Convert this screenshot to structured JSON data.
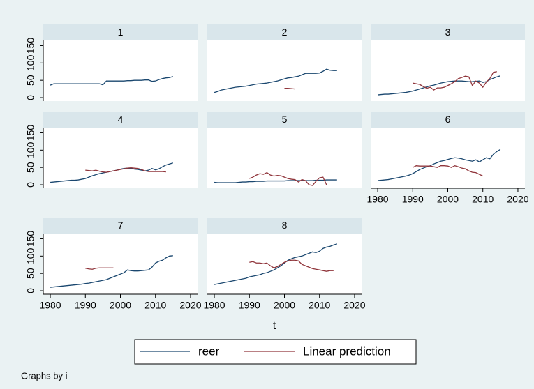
{
  "chart_data": [
    {
      "type": "line",
      "title": "1",
      "x": [
        1980,
        1981,
        1982,
        1983,
        1984,
        1985,
        1986,
        1987,
        1988,
        1989,
        1990,
        1991,
        1992,
        1993,
        1994,
        1995,
        1996,
        1997,
        1998,
        1999,
        2000,
        2001,
        2002,
        2003,
        2004,
        2005,
        2006,
        2007,
        2008,
        2009,
        2010,
        2011,
        2012,
        2013,
        2014,
        2015
      ],
      "xlim": [
        1978,
        2022
      ],
      "ylim": [
        -10,
        165
      ],
      "yticks": [
        0,
        50,
        100,
        150
      ],
      "series": [
        {
          "name": "reer",
          "color": "#1a476f",
          "values": [
            36,
            40,
            40,
            40,
            40,
            40,
            40,
            40,
            40,
            40,
            40,
            40,
            40,
            40,
            40,
            37,
            48,
            48,
            48,
            48,
            48,
            48,
            49,
            49,
            50,
            50,
            50,
            51,
            51,
            47,
            48,
            52,
            55,
            57,
            58,
            61
          ]
        },
        {
          "name": "Linear prediction",
          "color": "#90353b",
          "values": [
            null,
            null,
            null,
            null,
            null,
            null,
            null,
            null,
            null,
            null,
            null,
            null,
            null,
            null,
            null,
            null,
            null,
            null,
            null,
            null,
            null,
            null,
            null,
            null,
            null,
            null,
            null,
            null,
            null,
            null,
            null,
            null,
            null,
            null,
            null,
            null
          ]
        }
      ]
    },
    {
      "type": "line",
      "title": "2",
      "x": [
        1980,
        1981,
        1982,
        1983,
        1984,
        1985,
        1986,
        1987,
        1988,
        1989,
        1990,
        1991,
        1992,
        1993,
        1994,
        1995,
        1996,
        1997,
        1998,
        1999,
        2000,
        2001,
        2002,
        2003,
        2004,
        2005,
        2006,
        2007,
        2008,
        2009,
        2010,
        2011,
        2012,
        2013,
        2014,
        2015
      ],
      "xlim": [
        1978,
        2022
      ],
      "ylim": [
        -10,
        165
      ],
      "series": [
        {
          "name": "reer",
          "color": "#1a476f",
          "values": [
            15,
            18,
            22,
            24,
            26,
            28,
            30,
            31,
            32,
            33,
            35,
            37,
            39,
            40,
            41,
            42,
            44,
            46,
            48,
            51,
            54,
            57,
            58,
            60,
            62,
            66,
            70,
            70,
            70,
            70,
            71,
            76,
            82,
            79,
            78,
            78
          ]
        },
        {
          "name": "Linear prediction",
          "color": "#90353b",
          "values": [
            null,
            null,
            null,
            null,
            null,
            null,
            null,
            null,
            null,
            null,
            null,
            null,
            null,
            null,
            null,
            null,
            null,
            null,
            null,
            null,
            27,
            27,
            26,
            25,
            null,
            null,
            null,
            null,
            null,
            null,
            null,
            null,
            null,
            null,
            null,
            null
          ]
        }
      ]
    },
    {
      "type": "line",
      "title": "3",
      "x": [
        1980,
        1981,
        1982,
        1983,
        1984,
        1985,
        1986,
        1987,
        1988,
        1989,
        1990,
        1991,
        1992,
        1993,
        1994,
        1995,
        1996,
        1997,
        1998,
        1999,
        2000,
        2001,
        2002,
        2003,
        2004,
        2005,
        2006,
        2007,
        2008,
        2009,
        2010,
        2011,
        2012,
        2013,
        2014,
        2015
      ],
      "xlim": [
        1978,
        2022
      ],
      "ylim": [
        -10,
        165
      ],
      "series": [
        {
          "name": "reer",
          "color": "#1a476f",
          "values": [
            8,
            9,
            10,
            10,
            11,
            12,
            13,
            14,
            15,
            17,
            19,
            22,
            25,
            28,
            31,
            34,
            36,
            39,
            42,
            44,
            46,
            47,
            48,
            48,
            48,
            47,
            46,
            46,
            47,
            48,
            44,
            46,
            52,
            56,
            60,
            63
          ]
        },
        {
          "name": "Linear prediction",
          "color": "#90353b",
          "values": [
            null,
            null,
            null,
            null,
            null,
            null,
            null,
            null,
            null,
            null,
            42,
            40,
            38,
            32,
            27,
            30,
            22,
            28,
            28,
            30,
            35,
            40,
            46,
            55,
            58,
            62,
            60,
            35,
            48,
            42,
            30,
            45,
            55,
            73,
            75,
            null
          ]
        }
      ]
    },
    {
      "type": "line",
      "title": "4",
      "x": [
        1980,
        1981,
        1982,
        1983,
        1984,
        1985,
        1986,
        1987,
        1988,
        1989,
        1990,
        1991,
        1992,
        1993,
        1994,
        1995,
        1996,
        1997,
        1998,
        1999,
        2000,
        2001,
        2002,
        2003,
        2004,
        2005,
        2006,
        2007,
        2008,
        2009,
        2010,
        2011,
        2012,
        2013,
        2014,
        2015
      ],
      "xlim": [
        1978,
        2022
      ],
      "ylim": [
        -10,
        165
      ],
      "yticks": [
        0,
        50,
        100,
        150
      ],
      "series": [
        {
          "name": "reer",
          "color": "#1a476f",
          "values": [
            7,
            8,
            9,
            10,
            11,
            12,
            13,
            13,
            14,
            16,
            18,
            22,
            26,
            29,
            32,
            34,
            36,
            38,
            40,
            42,
            45,
            47,
            48,
            47,
            45,
            44,
            42,
            40,
            42,
            47,
            43,
            46,
            52,
            57,
            60,
            63
          ]
        },
        {
          "name": "Linear prediction",
          "color": "#90353b",
          "values": [
            null,
            null,
            null,
            null,
            null,
            null,
            null,
            null,
            null,
            null,
            42,
            41,
            40,
            42,
            39,
            37,
            36,
            38,
            40,
            42,
            44,
            46,
            48,
            49,
            48,
            47,
            44,
            40,
            38,
            38,
            38,
            38,
            38,
            37,
            null,
            null
          ]
        }
      ]
    },
    {
      "type": "line",
      "title": "5",
      "x": [
        1980,
        1981,
        1982,
        1983,
        1984,
        1985,
        1986,
        1987,
        1988,
        1989,
        1990,
        1991,
        1992,
        1993,
        1994,
        1995,
        1996,
        1997,
        1998,
        1999,
        2000,
        2001,
        2002,
        2003,
        2004,
        2005,
        2006,
        2007,
        2008,
        2009,
        2010,
        2011,
        2012,
        2013,
        2014,
        2015
      ],
      "xlim": [
        1978,
        2022
      ],
      "ylim": [
        -10,
        165
      ],
      "series": [
        {
          "name": "reer",
          "color": "#1a476f",
          "values": [
            7,
            6,
            6,
            6,
            6,
            6,
            6,
            7,
            8,
            8,
            9,
            9,
            10,
            10,
            10,
            11,
            11,
            11,
            11,
            11,
            11,
            12,
            12,
            12,
            12,
            12,
            12,
            12,
            12,
            13,
            13,
            13,
            14,
            14,
            14,
            14
          ]
        },
        {
          "name": "Linear prediction",
          "color": "#90353b",
          "values": [
            null,
            null,
            null,
            null,
            null,
            null,
            null,
            null,
            null,
            null,
            18,
            22,
            28,
            32,
            30,
            35,
            28,
            25,
            27,
            26,
            22,
            18,
            16,
            15,
            8,
            15,
            12,
            0,
            -2,
            10,
            20,
            22,
            0,
            null,
            null,
            null
          ]
        }
      ]
    },
    {
      "type": "line",
      "title": "6",
      "x": [
        1980,
        1981,
        1982,
        1983,
        1984,
        1985,
        1986,
        1987,
        1988,
        1989,
        1990,
        1991,
        1992,
        1993,
        1994,
        1995,
        1996,
        1997,
        1998,
        1999,
        2000,
        2001,
        2002,
        2003,
        2004,
        2005,
        2006,
        2007,
        2008,
        2009,
        2010,
        2011,
        2012,
        2013,
        2014,
        2015
      ],
      "xlim": [
        1978,
        2022
      ],
      "ylim": [
        -10,
        165
      ],
      "xticks": [
        1980,
        1990,
        2000,
        2010,
        2020
      ],
      "series": [
        {
          "name": "reer",
          "color": "#1a476f",
          "values": [
            12,
            13,
            14,
            15,
            17,
            19,
            21,
            23,
            25,
            28,
            32,
            38,
            44,
            48,
            52,
            55,
            60,
            64,
            68,
            70,
            73,
            76,
            78,
            77,
            75,
            72,
            70,
            68,
            72,
            66,
            72,
            78,
            75,
            88,
            96,
            102
          ]
        },
        {
          "name": "Linear prediction",
          "color": "#90353b",
          "values": [
            null,
            null,
            null,
            null,
            null,
            null,
            null,
            null,
            null,
            null,
            50,
            55,
            54,
            54,
            54,
            54,
            52,
            50,
            55,
            55,
            54,
            50,
            55,
            52,
            48,
            46,
            40,
            36,
            35,
            30,
            25,
            null,
            null,
            null,
            null,
            null
          ]
        }
      ]
    },
    {
      "type": "line",
      "title": "7",
      "x": [
        1980,
        1981,
        1982,
        1983,
        1984,
        1985,
        1986,
        1987,
        1988,
        1989,
        1990,
        1991,
        1992,
        1993,
        1994,
        1995,
        1996,
        1997,
        1998,
        1999,
        2000,
        2001,
        2002,
        2003,
        2004,
        2005,
        2006,
        2007,
        2008,
        2009,
        2010,
        2011,
        2012,
        2013,
        2014,
        2015
      ],
      "xlim": [
        1978,
        2022
      ],
      "ylim": [
        -10,
        165
      ],
      "yticks": [
        0,
        50,
        100,
        150
      ],
      "xticks": [
        1980,
        1990,
        2000,
        2010,
        2020
      ],
      "series": [
        {
          "name": "reer",
          "color": "#1a476f",
          "values": [
            10,
            11,
            12,
            13,
            14,
            15,
            16,
            17,
            18,
            19,
            21,
            22,
            24,
            26,
            28,
            30,
            32,
            36,
            40,
            44,
            48,
            52,
            60,
            58,
            57,
            57,
            58,
            59,
            60,
            68,
            80,
            85,
            88,
            95,
            100,
            101
          ]
        },
        {
          "name": "Linear prediction",
          "color": "#90353b",
          "values": [
            null,
            null,
            null,
            null,
            null,
            null,
            null,
            null,
            null,
            null,
            65,
            63,
            62,
            65,
            66,
            66,
            66,
            66,
            66,
            null,
            null,
            null,
            null,
            null,
            null,
            null,
            null,
            null,
            null,
            null,
            null,
            null,
            null,
            null,
            null,
            null
          ]
        }
      ]
    },
    {
      "type": "line",
      "title": "8",
      "x": [
        1980,
        1981,
        1982,
        1983,
        1984,
        1985,
        1986,
        1987,
        1988,
        1989,
        1990,
        1991,
        1992,
        1993,
        1994,
        1995,
        1996,
        1997,
        1998,
        1999,
        2000,
        2001,
        2002,
        2003,
        2004,
        2005,
        2006,
        2007,
        2008,
        2009,
        2010,
        2011,
        2012,
        2013,
        2014,
        2015
      ],
      "xlim": [
        1978,
        2022
      ],
      "ylim": [
        -10,
        165
      ],
      "xticks": [
        1980,
        1990,
        2000,
        2010,
        2020
      ],
      "series": [
        {
          "name": "reer",
          "color": "#1a476f",
          "values": [
            18,
            20,
            22,
            24,
            26,
            28,
            30,
            32,
            34,
            36,
            40,
            42,
            44,
            46,
            50,
            52,
            56,
            60,
            66,
            72,
            80,
            88,
            92,
            96,
            98,
            100,
            104,
            108,
            112,
            110,
            114,
            122,
            126,
            128,
            132,
            135
          ]
        },
        {
          "name": "Linear prediction",
          "color": "#90353b",
          "values": [
            null,
            null,
            null,
            null,
            null,
            null,
            null,
            null,
            null,
            null,
            82,
            84,
            80,
            80,
            78,
            80,
            72,
            66,
            70,
            76,
            82,
            86,
            88,
            88,
            86,
            76,
            72,
            68,
            64,
            62,
            60,
            58,
            56,
            58,
            58,
            null
          ]
        }
      ]
    }
  ],
  "x_label": "t",
  "note": "Graphs by i"
}
